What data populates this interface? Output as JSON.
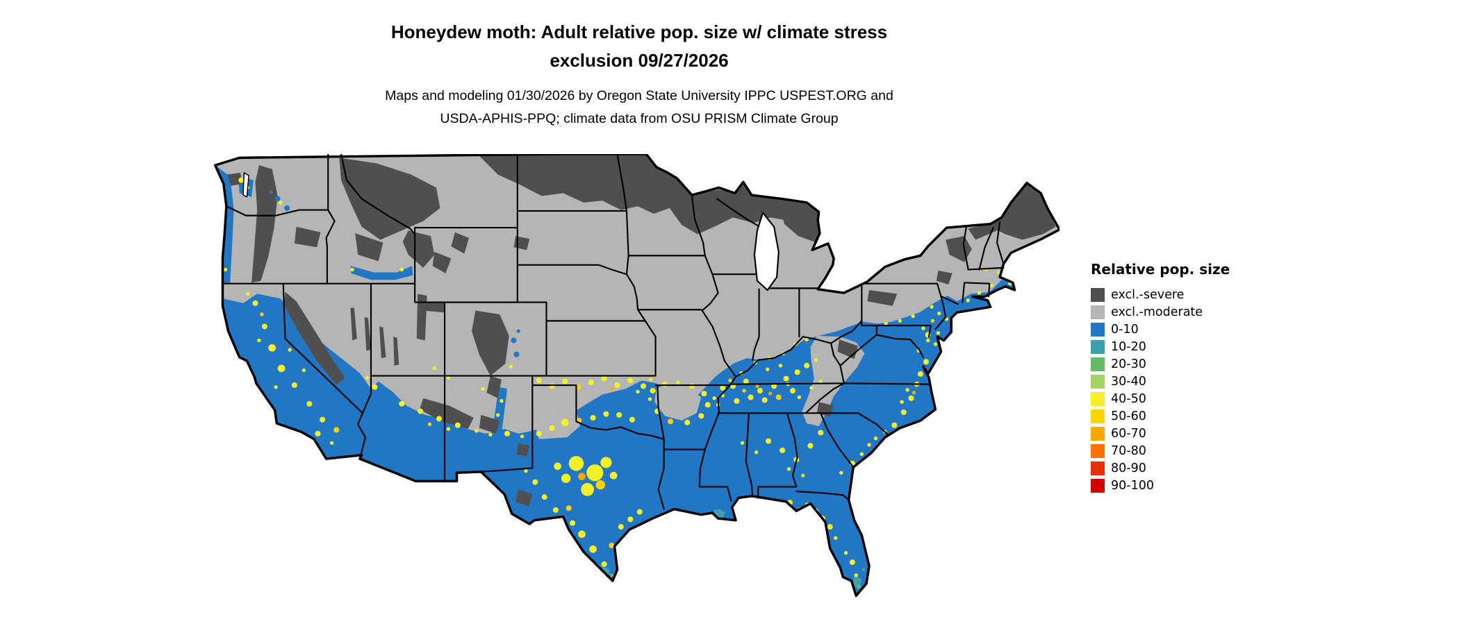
{
  "title": {
    "line1": "Honeydew moth: Adult relative pop. size w/ climate stress",
    "line2": "exclusion 09/27/2026"
  },
  "subtitle": {
    "line1": "Maps and modeling 01/30/2026 by Oregon State University IPPC USPEST.ORG and",
    "line2": "USDA-APHIS-PPQ; climate data from OSU PRISM Climate Group"
  },
  "legend": {
    "title": "Relative pop. size",
    "items": [
      {
        "label": "excl.-severe",
        "color": "#4f4f4f"
      },
      {
        "label": "excl.-moderate",
        "color": "#b5b5b5"
      },
      {
        "label": "0-10",
        "color": "#2277c4"
      },
      {
        "label": "10-20",
        "color": "#3d9fae"
      },
      {
        "label": "20-30",
        "color": "#62ba66"
      },
      {
        "label": "30-40",
        "color": "#a4d465"
      },
      {
        "label": "40-50",
        "color": "#f4ef28"
      },
      {
        "label": "50-60",
        "color": "#ffd300"
      },
      {
        "label": "60-70",
        "color": "#ffa500"
      },
      {
        "label": "70-80",
        "color": "#ff7200"
      },
      {
        "label": "80-90",
        "color": "#e73000"
      },
      {
        "label": "90-100",
        "color": "#d40000"
      }
    ]
  },
  "map": {
    "region": "Continental United States",
    "water_color": "#ffffff",
    "border_color": "#000000"
  }
}
